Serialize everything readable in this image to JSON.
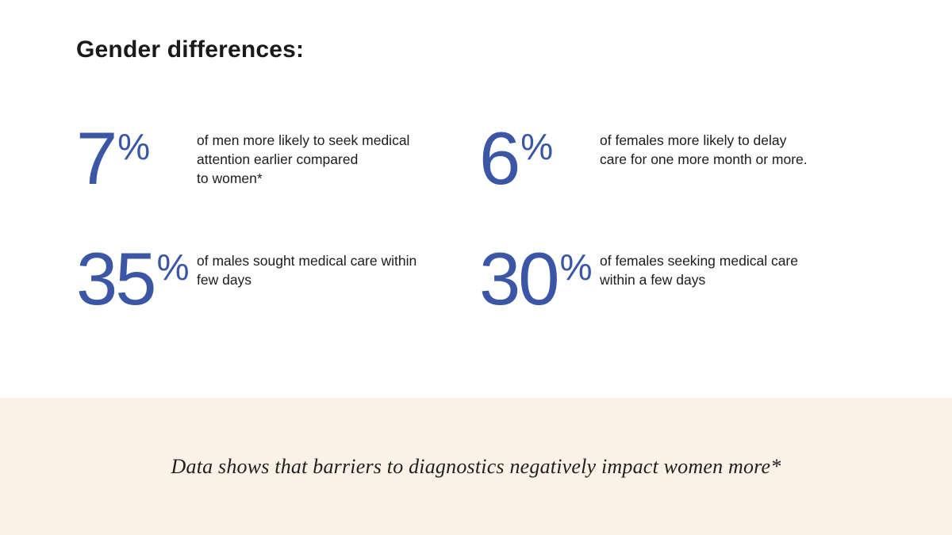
{
  "title": "Gender differences:",
  "stats": [
    {
      "value": "7",
      "unit": "%",
      "text": "of men more likely to seek medical\nattention earlier compared\nto women*"
    },
    {
      "value": "6",
      "unit": "%",
      "text": "of females more likely to delay\ncare for one more month or more."
    },
    {
      "value": "35",
      "unit": "%",
      "text": "of males sought medical care within\nfew days"
    },
    {
      "value": "30",
      "unit": "%",
      "text": "of females seeking medical care\nwithin a few days"
    }
  ],
  "footer": {
    "note": "Data shows that barriers to diagnostics negatively impact women more*"
  },
  "colors": {
    "accent": "#3A56A5",
    "heading_text": "#1A1A1A",
    "body_text": "#1C1C1C",
    "band_background": "#FCF1E6",
    "page_background": "#FFFFFF"
  }
}
